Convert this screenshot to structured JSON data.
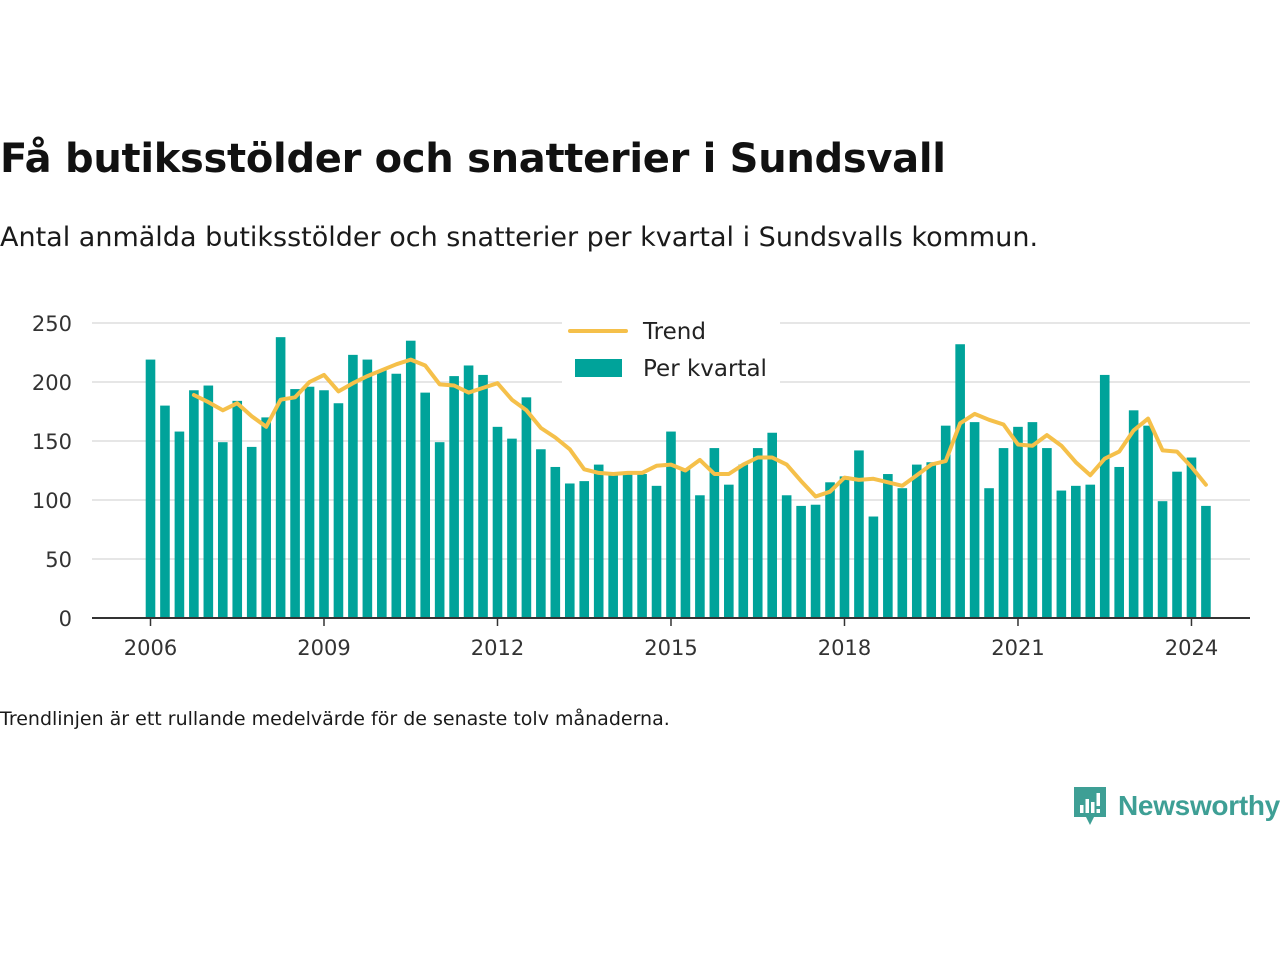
{
  "title": "Få butiksstölder och snatterier i Sundsvall",
  "subtitle": "Antal anmälda butiksstölder och snatterier per kvartal i Sundsvalls kommun.",
  "footnote": "Trendlinjen är ett rullande medelvärde för de senaste tolv månaderna.",
  "brand": {
    "name": "Newsworthy",
    "icon": "newsworthy-logo-icon"
  },
  "colors": {
    "bars": "#00a39a",
    "trend": "#f5c04a",
    "grid": "#dddddd",
    "axis": "#333333"
  },
  "chart_data": {
    "type": "bar",
    "x_start_year": 2006,
    "x_ticks": [
      "2006",
      "2009",
      "2012",
      "2015",
      "2018",
      "2021",
      "2024"
    ],
    "y_ticks": [
      "0",
      "50",
      "100",
      "150",
      "200",
      "250"
    ],
    "ylim": [
      0,
      250
    ],
    "grid": true,
    "legend_position": "top-center",
    "series": [
      {
        "name": "Per kvartal",
        "kind": "bar",
        "values": [
          219,
          180,
          158,
          193,
          197,
          149,
          184,
          145,
          170,
          238,
          194,
          196,
          193,
          182,
          223,
          219,
          210,
          207,
          235,
          191,
          149,
          205,
          214,
          206,
          162,
          152,
          187,
          143,
          128,
          114,
          116,
          130,
          122,
          124,
          122,
          112,
          158,
          126,
          104,
          144,
          113,
          130,
          144,
          157,
          104,
          95,
          96,
          115,
          120,
          142,
          86,
          122,
          110,
          130,
          132,
          163,
          232,
          166,
          110,
          144,
          162,
          166,
          144,
          108,
          112,
          113,
          206,
          128,
          176,
          163,
          99,
          124,
          136,
          95
        ]
      },
      {
        "name": "Trend",
        "kind": "line",
        "values": [
          null,
          null,
          null,
          189,
          183,
          176,
          182,
          171,
          162,
          185,
          187,
          200,
          206,
          192,
          199,
          205,
          210,
          215,
          219,
          214,
          198,
          197,
          191,
          195,
          199,
          185,
          176,
          161,
          153,
          143,
          126,
          123,
          122,
          123,
          123,
          129,
          130,
          125,
          134,
          122,
          122,
          130,
          136,
          136,
          130,
          116,
          103,
          107,
          119,
          117,
          118,
          115,
          112,
          121,
          130,
          133,
          165,
          173,
          168,
          164,
          147,
          146,
          155,
          146,
          132,
          121,
          135,
          141,
          159,
          169,
          142,
          141,
          128,
          113
        ]
      }
    ]
  }
}
